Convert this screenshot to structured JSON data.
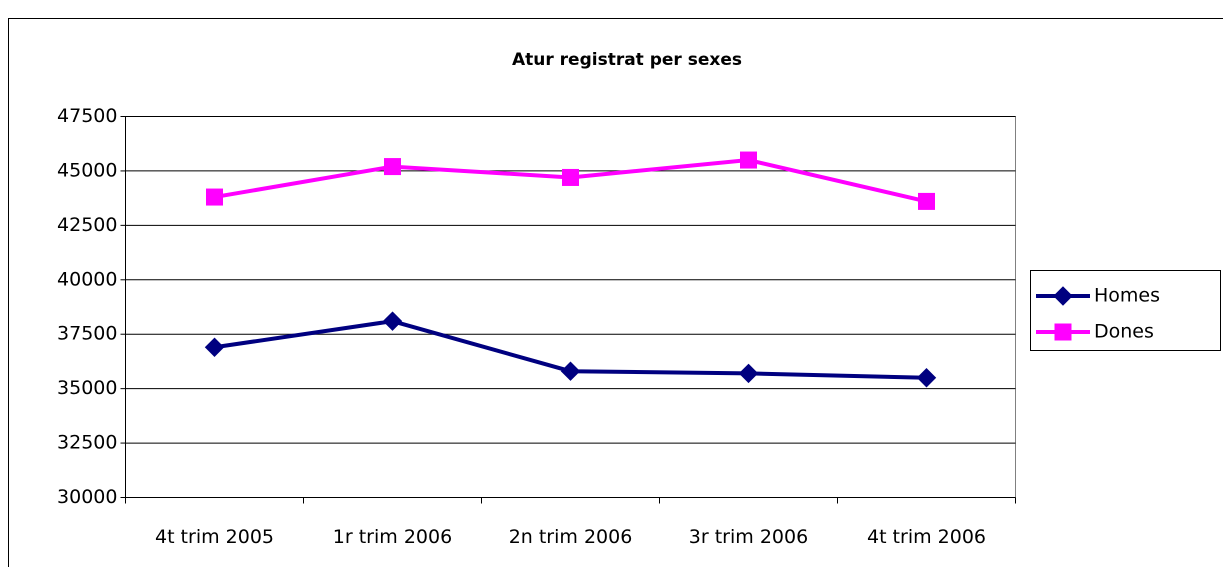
{
  "chart_data": {
    "type": "line",
    "title": "Atur registrat per sexes",
    "categories": [
      "4t trim 2005",
      "1r trim 2006",
      "2n trim 2006",
      "3r trim 2006",
      "4t trim 2006"
    ],
    "series": [
      {
        "name": "Homes",
        "color": "#000080",
        "marker": "diamond",
        "values": [
          36900,
          38100,
          35800,
          35700,
          35500
        ]
      },
      {
        "name": "Dones",
        "color": "#ff00ff",
        "marker": "square",
        "values": [
          43800,
          45200,
          44700,
          45500,
          43600
        ]
      }
    ],
    "ylim": [
      30000,
      47500
    ],
    "yticks": [
      30000,
      32500,
      35000,
      37500,
      40000,
      42500,
      45000,
      47500
    ],
    "grid": true,
    "legend": "right"
  }
}
